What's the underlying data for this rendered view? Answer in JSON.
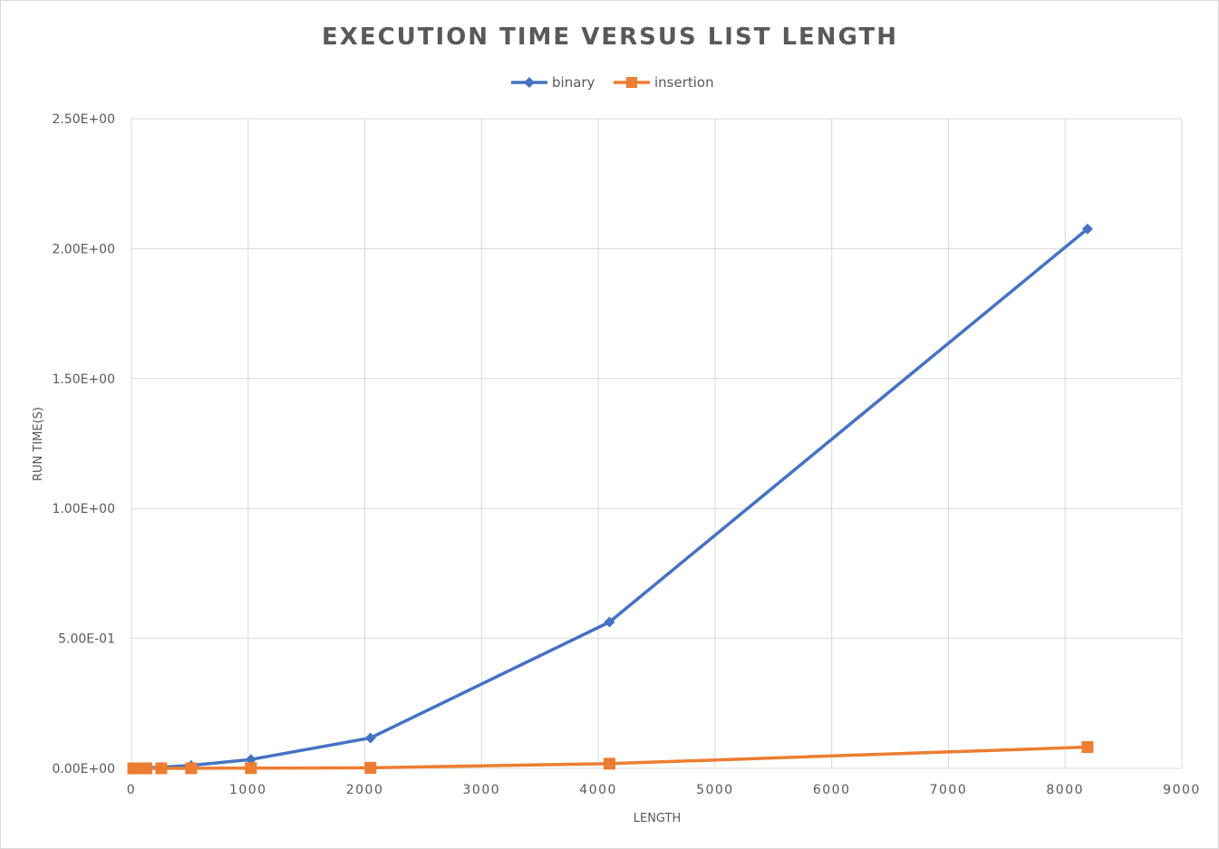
{
  "chart_data": {
    "type": "line",
    "title": "EXECUTION TIME VERSUS LIST LENGTH",
    "xlabel": "LENGTH",
    "ylabel": "RUN TIME(S)",
    "xlim": [
      0,
      9000
    ],
    "ylim": [
      0,
      2.5
    ],
    "xticks": [
      0,
      1000,
      2000,
      3000,
      4000,
      5000,
      6000,
      7000,
      8000,
      9000
    ],
    "xtick_labels": [
      "0",
      "1000",
      "2000",
      "3000",
      "4000",
      "5000",
      "6000",
      "7000",
      "8000",
      "9000"
    ],
    "yticks": [
      0,
      0.5,
      1.0,
      1.5,
      2.0,
      2.5
    ],
    "ytick_labels": [
      "0.00E+00",
      "5.00E-01",
      "1.00E+00",
      "1.50E+00",
      "2.00E+00",
      "2.50E+00"
    ],
    "grid": true,
    "legend": "top-center",
    "series": [
      {
        "name": "binary",
        "color": "#4472c4",
        "marker": "diamond",
        "x": [
          16,
          32,
          64,
          128,
          256,
          512,
          1024,
          2048,
          4096,
          8192
        ],
        "y": [
          0.0001,
          0.0003,
          0.0008,
          0.002,
          0.0045,
          0.011,
          0.034,
          0.117,
          0.563,
          2.076
        ]
      },
      {
        "name": "insertion",
        "color": "#ed7d31",
        "marker": "square",
        "x": [
          16,
          32,
          64,
          128,
          256,
          512,
          1024,
          2048,
          4096,
          8192
        ],
        "y": [
          0.0,
          0.0,
          0.0,
          0.0,
          0.0001,
          0.0003,
          0.001,
          0.002,
          0.018,
          0.082
        ]
      }
    ]
  }
}
